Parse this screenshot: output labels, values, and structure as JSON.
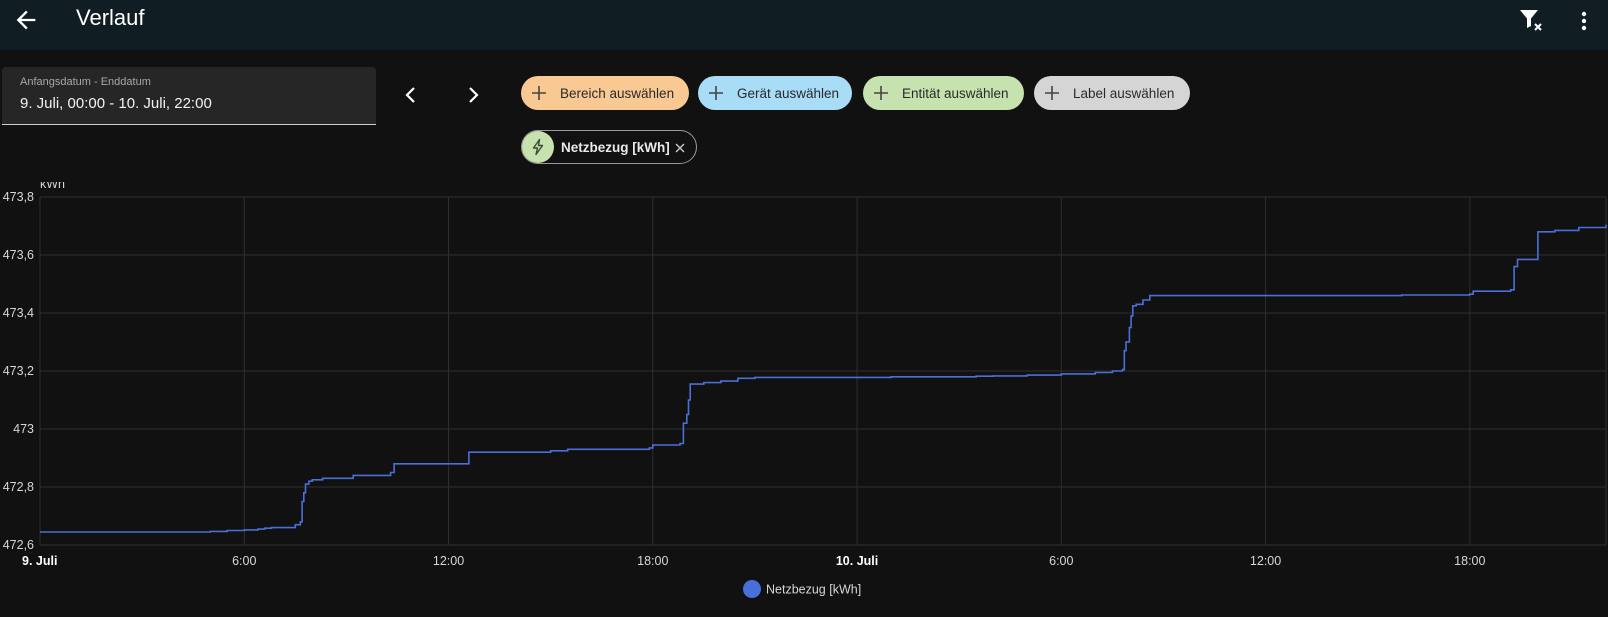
{
  "header": {
    "title": "Verlauf",
    "back_icon": "arrow-left-icon",
    "filter_remove_icon": "filter-remove-icon",
    "menu_icon": "dots-vertical-icon"
  },
  "date_range": {
    "label": "Anfangsdatum - Enddatum",
    "value": "9. Juli, 00:00 - 10. Juli, 22:00"
  },
  "target_pickers": [
    {
      "label": "Bereich auswählen",
      "color": "#f9c994"
    },
    {
      "label": "Gerät auswählen",
      "color": "#a8dcf7"
    },
    {
      "label": "Entität auswählen",
      "color": "#c6e2ae"
    },
    {
      "label": "Label auswählen",
      "color": "#d5d5d5"
    }
  ],
  "selected_entity": {
    "label": "Netzbezug [kWh]",
    "icon": "flash-icon",
    "color": "#c6e2ae"
  },
  "chart_data": {
    "type": "line",
    "ylabel": "kWh",
    "ylim": [
      472.6,
      473.8
    ],
    "y_ticks": [
      "473,8",
      "473,6",
      "473,4",
      "473,2",
      "473",
      "472,8",
      "472,6"
    ],
    "y_tick_values": [
      473.8,
      473.6,
      473.4,
      473.2,
      473.0,
      472.8,
      472.6
    ],
    "xlim_hours": [
      0,
      46
    ],
    "x_ticks": [
      {
        "label": "9. Juli",
        "hour": 0,
        "bold": true
      },
      {
        "label": "6:00",
        "hour": 6,
        "bold": false
      },
      {
        "label": "12:00",
        "hour": 12,
        "bold": false
      },
      {
        "label": "18:00",
        "hour": 18,
        "bold": false
      },
      {
        "label": "10. Juli",
        "hour": 24,
        "bold": true
      },
      {
        "label": "6:00",
        "hour": 30,
        "bold": false
      },
      {
        "label": "12:00",
        "hour": 36,
        "bold": false
      },
      {
        "label": "18:00",
        "hour": 42,
        "bold": false
      }
    ],
    "grid": true,
    "legend_position": "bottom",
    "series": [
      {
        "name": "Netzbezug [kWh]",
        "color": "#4a6fd8",
        "x": [
          0,
          3,
          5,
          5.5,
          6,
          6.4,
          6.6,
          6.8,
          7.5,
          7.65,
          7.7,
          7.75,
          7.8,
          7.9,
          8.0,
          8.3,
          9.2,
          10.3,
          10.4,
          12.5,
          12.6,
          15.0,
          15.5,
          17.9,
          18.0,
          18.8,
          18.9,
          19.0,
          19.05,
          19.1,
          19.5,
          20.0,
          20.5,
          21.0,
          24.0,
          25.0,
          27.5,
          28.0,
          29.0,
          30.0,
          31.0,
          31.5,
          31.8,
          31.85,
          31.9,
          32.0,
          32.05,
          32.1,
          32.2,
          32.4,
          32.6,
          35.0,
          40.0,
          42.0,
          42.1,
          43.2,
          43.3,
          43.4,
          44.0,
          44.5,
          45.2,
          46.0
        ],
        "values": [
          472.645,
          472.645,
          472.647,
          472.65,
          472.652,
          472.655,
          472.658,
          472.66,
          472.67,
          472.68,
          472.75,
          472.78,
          472.81,
          472.82,
          472.825,
          472.83,
          472.84,
          472.85,
          472.88,
          472.88,
          472.92,
          472.925,
          472.93,
          472.935,
          472.945,
          472.95,
          473.02,
          473.05,
          473.1,
          473.155,
          473.16,
          473.165,
          473.175,
          473.178,
          473.178,
          473.18,
          473.182,
          473.183,
          473.186,
          473.19,
          473.195,
          473.2,
          473.205,
          473.27,
          473.3,
          473.35,
          473.39,
          473.425,
          473.43,
          473.445,
          473.46,
          473.46,
          473.462,
          473.465,
          473.475,
          473.48,
          473.56,
          473.585,
          473.68,
          473.685,
          473.695,
          473.705
        ]
      }
    ]
  }
}
